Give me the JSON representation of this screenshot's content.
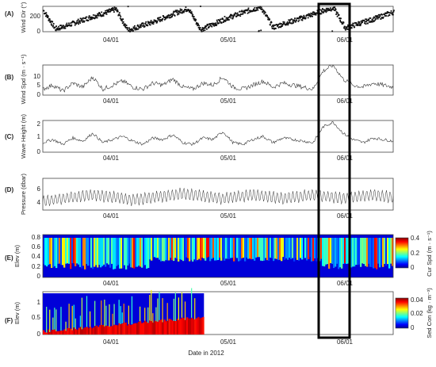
{
  "figure": {
    "xlabel": "Date in 2012"
  },
  "chart_data": [
    {
      "panel": "(A)",
      "type": "scatter",
      "ylabel": "Wind Dir (°)",
      "ylim": [
        0,
        360
      ],
      "yticks": [
        0,
        200
      ],
      "xticks": [
        "04/01",
        "05/01",
        "06/01"
      ],
      "series": [
        {
          "name": "",
          "values": [
            300,
            40,
            90,
            150,
            210,
            260,
            320,
            20,
            80,
            130,
            200,
            270,
            330,
            30,
            100,
            180,
            240,
            300,
            350,
            60,
            120,
            170,
            230,
            290,
            340,
            50,
            110,
            160,
            220,
            280
          ]
        }
      ]
    },
    {
      "panel": "(B)",
      "type": "line",
      "ylabel": "Wind Spd (m · s⁻¹)",
      "ylim": [
        0,
        15
      ],
      "yticks": [
        0,
        5,
        10
      ],
      "xticks": [
        "04/01",
        "05/01",
        "06/01"
      ],
      "series": [
        {
          "name": "",
          "values": [
            3,
            5,
            2,
            6,
            4,
            9,
            3,
            5,
            7,
            4,
            3,
            6,
            5,
            8,
            4,
            3,
            6,
            5,
            9,
            4,
            3,
            5,
            7,
            4,
            6,
            5,
            4,
            3,
            12,
            15,
            8,
            5,
            4,
            6,
            5,
            4
          ]
        }
      ]
    },
    {
      "panel": "(C)",
      "type": "line",
      "ylabel": "Wave Height (m)",
      "ylim": [
        0,
        2
      ],
      "yticks": [
        0,
        1,
        2
      ],
      "xticks": [
        "04/01",
        "05/01",
        "06/01"
      ],
      "series": [
        {
          "name": "",
          "values": [
            0.6,
            0.8,
            0.5,
            0.9,
            0.7,
            1.2,
            0.6,
            0.8,
            1,
            0.7,
            0.5,
            0.9,
            0.8,
            1.1,
            0.6,
            0.5,
            0.9,
            0.8,
            1.3,
            0.6,
            0.5,
            0.8,
            1,
            0.6,
            0.9,
            0.8,
            0.7,
            0.6,
            1.6,
            1.9,
            1.2,
            0.8,
            0.6,
            0.9,
            0.8,
            0.7
          ]
        }
      ]
    },
    {
      "panel": "(D)",
      "type": "line",
      "ylabel": "Pressure (dbar)",
      "ylim": [
        3,
        8
      ],
      "yticks": [
        4,
        6
      ],
      "xticks": [
        "04/01",
        "05/01",
        "06/01"
      ],
      "series": [
        {
          "name": "",
          "values": [
            4.4,
            4.6,
            4.8,
            5,
            5.2,
            5.4,
            5.2,
            5,
            4.8,
            4.6,
            4.8,
            5,
            5.2,
            5.4,
            5.6,
            5.4,
            5.2,
            5,
            4.8,
            5,
            5.2,
            5.4,
            5.2,
            5,
            4.8,
            5,
            5.2,
            5.4,
            5.2,
            5,
            4.8,
            5,
            5.2,
            5.4,
            5.2,
            5
          ]
        }
      ]
    },
    {
      "panel": "(E)",
      "type": "heatmap",
      "ylabel": "Elev (m)",
      "ylim": [
        0,
        0.85
      ],
      "yticks": [
        0,
        0.2,
        0.4,
        0.6,
        0.8
      ],
      "xticks": [
        "04/01",
        "05/01",
        "06/01"
      ],
      "colorbar": {
        "label": "Cur Spd (m · s⁻¹)",
        "range": [
          0,
          0.4
        ],
        "ticks": [
          0,
          0.2,
          0.4
        ]
      }
    },
    {
      "panel": "(F)",
      "type": "heatmap",
      "ylabel": "Elev (m)",
      "ylim": [
        0,
        1.3
      ],
      "yticks": [
        0,
        0.5,
        1
      ],
      "xticks": [
        "04/01",
        "05/01",
        "06/01"
      ],
      "colorbar": {
        "label": "Sed Con (kg · m⁻³)",
        "range": [
          0,
          0.04
        ],
        "ticks": [
          0,
          0.02,
          0.04
        ]
      }
    }
  ]
}
